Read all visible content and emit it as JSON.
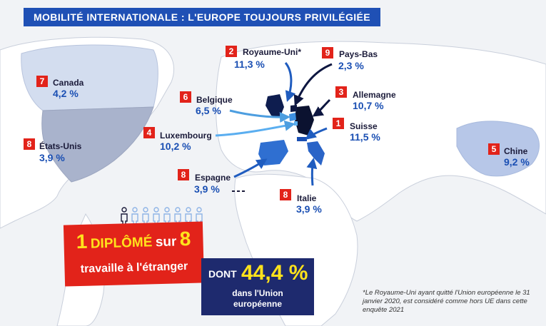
{
  "title": "MOBILITÉ INTERNATIONALE : L'EUROPE TOUJOURS PRIVILÉGIÉE",
  "destinations": [
    {
      "key": "royaume_uni",
      "rank": "2",
      "name": "Royaume-Uni*",
      "value": "11,3 %"
    },
    {
      "key": "pays_bas",
      "rank": "9",
      "name": "Pays-Bas",
      "value": "2,3 %"
    },
    {
      "key": "canada",
      "rank": "7",
      "name": "Canada",
      "value": "4,2 %"
    },
    {
      "key": "belgique",
      "rank": "6",
      "name": "Belgique",
      "value": "6,5 %"
    },
    {
      "key": "allemagne",
      "rank": "3",
      "name": "Allemagne",
      "value": "10,7 %"
    },
    {
      "key": "suisse",
      "rank": "1",
      "name": "Suisse",
      "value": "11,5 %"
    },
    {
      "key": "luxembourg",
      "rank": "4",
      "name": "Luxembourg",
      "value": "10,2 %"
    },
    {
      "key": "etats_unis",
      "rank": "8",
      "name": "États-Unis",
      "value": "3,9 %"
    },
    {
      "key": "espagne",
      "rank": "8",
      "name": "Espagne",
      "value": "3,9 %"
    },
    {
      "key": "italie",
      "rank": "8",
      "name": "Italie",
      "value": "3,9 %"
    },
    {
      "key": "chine",
      "rank": "5",
      "name": "Chine",
      "value": "9,2 %"
    }
  ],
  "stat": {
    "one": "1",
    "diplome": "DIPLÔMÉ",
    "sur": "sur",
    "eight": "8",
    "abroad": "travaille à l'étranger"
  },
  "eu": {
    "dont": "DONT",
    "value": "44,4 %",
    "line1": "dans l'Union",
    "line2": "européenne"
  },
  "footnote": "*Le Royaume-Uni ayant quitté l'Union européenne le 31 janvier 2020, est considéré comme hors UE dans cette enquête 2021",
  "colors": {
    "navy": "#1e2a6e",
    "blue": "#1a4fb3",
    "red": "#e2231a",
    "yellow": "#ffe21c",
    "canada_fill": "#d3ddef",
    "usa_fill": "#a9b3cc",
    "china_fill": "#b7c7e8"
  }
}
